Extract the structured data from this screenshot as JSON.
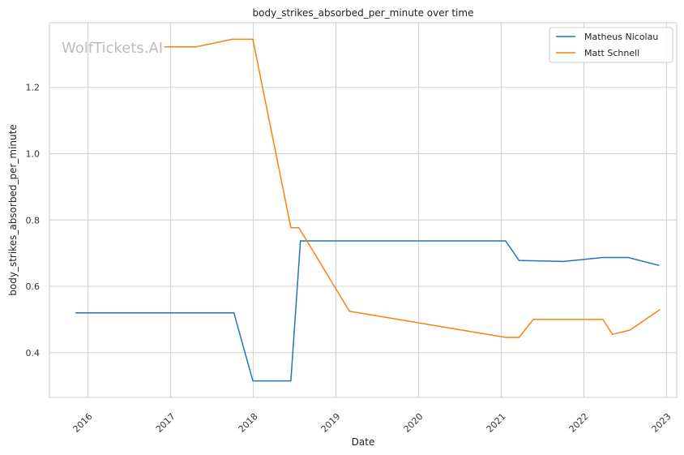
{
  "chart_data": {
    "type": "line",
    "title": "body_strikes_absorbed_per_minute over time",
    "xlabel": "Date",
    "ylabel": "body_strikes_absorbed_per_minute",
    "watermark": "WolfTickets.AI",
    "x_ticks": [
      "2016",
      "2017",
      "2018",
      "2019",
      "2020",
      "2021",
      "2022",
      "2023"
    ],
    "y_ticks": [
      "0.4",
      "0.6",
      "0.8",
      "1.0",
      "1.2"
    ],
    "xlim": [
      "2015-07-15",
      "2023-02-15"
    ],
    "ylim": [
      0.265,
      1.395
    ],
    "grid": true,
    "legend_position": "top-right",
    "series": [
      {
        "name": "Matheus Nicolau",
        "color": "#1f77b4",
        "points": [
          {
            "date": "2015-11-07",
            "value": 0.52
          },
          {
            "date": "2017-10-07",
            "value": 0.52
          },
          {
            "date": "2017-12-30",
            "value": 0.315
          },
          {
            "date": "2018-06-16",
            "value": 0.315
          },
          {
            "date": "2018-07-28",
            "value": 0.737
          },
          {
            "date": "2021-01-20",
            "value": 0.737
          },
          {
            "date": "2021-03-20",
            "value": 0.678
          },
          {
            "date": "2021-10-02",
            "value": 0.675
          },
          {
            "date": "2022-03-26",
            "value": 0.687
          },
          {
            "date": "2022-07-16",
            "value": 0.687
          },
          {
            "date": "2022-11-30",
            "value": 0.663
          }
        ]
      },
      {
        "name": "Matt Schnell",
        "color": "#ff7f0e",
        "points": [
          {
            "date": "2016-12-03",
            "value": 1.322
          },
          {
            "date": "2017-04-22",
            "value": 1.322
          },
          {
            "date": "2017-09-30",
            "value": 1.345
          },
          {
            "date": "2017-12-30",
            "value": 1.345
          },
          {
            "date": "2018-06-16",
            "value": 0.777
          },
          {
            "date": "2018-07-21",
            "value": 0.777
          },
          {
            "date": "2019-03-02",
            "value": 0.525
          },
          {
            "date": "2021-01-20",
            "value": 0.446
          },
          {
            "date": "2021-03-20",
            "value": 0.446
          },
          {
            "date": "2021-05-22",
            "value": 0.5
          },
          {
            "date": "2022-03-26",
            "value": 0.5
          },
          {
            "date": "2022-05-07",
            "value": 0.455
          },
          {
            "date": "2022-07-23",
            "value": 0.468
          },
          {
            "date": "2022-12-03",
            "value": 0.53
          }
        ]
      }
    ]
  }
}
